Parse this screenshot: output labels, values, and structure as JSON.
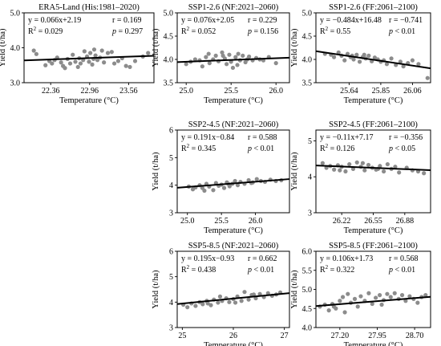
{
  "colors": {
    "points": "#8c8c8c",
    "line": "#000000",
    "frame": "#000000"
  },
  "chart_data": [
    {
      "type": "scatter",
      "title": "ERA5-Land (His:1981–2020)",
      "equation": "y = 0.066x+2.19",
      "r": "r = 0.169",
      "r2": "0.029",
      "p": "= 0.297",
      "xlabel": "Temperature (°C)",
      "ylabel": "Yield (t/ha)",
      "xlim": [
        21.95,
        23.95
      ],
      "ylim": [
        3,
        5
      ],
      "xticks": [
        22.36,
        22.96,
        23.56
      ],
      "yticks": [
        3,
        4,
        5
      ],
      "xtick_labels": [
        "22.36",
        "22.96",
        "23.56"
      ],
      "ytick_labels": [
        "3.0",
        "4.0",
        "5.0"
      ],
      "fit": {
        "slope": 0.066,
        "intercept": 2.19
      },
      "points": [
        [
          22.1,
          3.92
        ],
        [
          22.14,
          3.82
        ],
        [
          22.28,
          3.5
        ],
        [
          22.34,
          3.62
        ],
        [
          22.38,
          3.55
        ],
        [
          22.42,
          3.65
        ],
        [
          22.46,
          3.72
        ],
        [
          22.52,
          3.58
        ],
        [
          22.55,
          3.48
        ],
        [
          22.58,
          3.42
        ],
        [
          22.62,
          3.68
        ],
        [
          22.66,
          3.55
        ],
        [
          22.7,
          3.8
        ],
        [
          22.74,
          3.6
        ],
        [
          22.78,
          3.45
        ],
        [
          22.8,
          3.7
        ],
        [
          22.82,
          3.55
        ],
        [
          22.86,
          3.65
        ],
        [
          22.88,
          3.9
        ],
        [
          22.92,
          3.75
        ],
        [
          22.95,
          3.6
        ],
        [
          22.97,
          3.85
        ],
        [
          23.0,
          3.52
        ],
        [
          23.03,
          3.95
        ],
        [
          23.05,
          3.78
        ],
        [
          23.08,
          3.65
        ],
        [
          23.12,
          3.72
        ],
        [
          23.15,
          3.92
        ],
        [
          23.18,
          3.58
        ],
        [
          23.24,
          3.85
        ],
        [
          23.3,
          3.88
        ],
        [
          23.34,
          3.55
        ],
        [
          23.4,
          3.62
        ],
        [
          23.46,
          3.7
        ],
        [
          23.52,
          3.48
        ],
        [
          23.58,
          3.45
        ],
        [
          23.66,
          3.62
        ],
        [
          23.78,
          3.75
        ],
        [
          23.86,
          3.85
        ],
        [
          23.02,
          3.68
        ]
      ]
    },
    {
      "type": "scatter",
      "title": "SSP1-2.6 (NF:2021–2060)",
      "equation": "y = 0.076x+2.05",
      "r": "r = 0.229",
      "r2": "0.052",
      "p": "= 0.156",
      "xlabel": "Temperature (°C)",
      "ylabel": "Yield (t/ha)",
      "xlim": [
        24.9,
        26.15
      ],
      "ylim": [
        3.5,
        5
      ],
      "xticks": [
        25.0,
        25.5,
        26.0
      ],
      "yticks": [
        3.5,
        4.0,
        4.5,
        5.0
      ],
      "xtick_labels": [
        "25.0",
        "25.5",
        "26.0"
      ],
      "ytick_labels": [
        "3.5",
        "4.0",
        "4.5",
        "5.0"
      ],
      "fit": {
        "slope": 0.076,
        "intercept": 2.05
      },
      "points": [
        [
          25.0,
          3.9
        ],
        [
          25.05,
          3.95
        ],
        [
          25.1,
          4.0
        ],
        [
          25.15,
          3.98
        ],
        [
          25.18,
          3.85
        ],
        [
          25.22,
          4.05
        ],
        [
          25.26,
          3.92
        ],
        [
          25.3,
          4.0
        ],
        [
          25.33,
          4.08
        ],
        [
          25.36,
          3.96
        ],
        [
          25.4,
          4.15
        ],
        [
          25.43,
          4.02
        ],
        [
          25.45,
          3.9
        ],
        [
          25.48,
          4.1
        ],
        [
          25.5,
          3.95
        ],
        [
          25.52,
          3.82
        ],
        [
          25.55,
          4.05
        ],
        [
          25.58,
          4.12
        ],
        [
          25.6,
          3.98
        ],
        [
          25.63,
          4.08
        ],
        [
          25.66,
          3.94
        ],
        [
          25.7,
          4.06
        ],
        [
          25.74,
          3.98
        ],
        [
          25.78,
          4.03
        ],
        [
          25.82,
          4.0
        ],
        [
          25.86,
          3.98
        ],
        [
          25.92,
          4.05
        ],
        [
          26.0,
          3.92
        ],
        [
          25.25,
          4.12
        ],
        [
          25.41,
          4.08
        ],
        [
          25.57,
          3.88
        ],
        [
          25.68,
          4.0
        ]
      ]
    },
    {
      "type": "scatter",
      "title": "SSP1-2.6 (FF:2061–2100)",
      "equation": "y = −0.484x+16.48",
      "r": "r = −0.741",
      "r2": "0.55",
      "p": "< 0.01",
      "xlabel": "Temperature (°C)",
      "ylabel": "Yield (t/ha)",
      "xlim": [
        25.42,
        26.18
      ],
      "ylim": [
        3.5,
        5
      ],
      "xticks": [
        25.64,
        25.85,
        26.06
      ],
      "yticks": [
        3.5,
        4.0,
        4.5,
        5.0
      ],
      "xtick_labels": [
        "25.64",
        "25.85",
        "26.06"
      ],
      "ytick_labels": [
        "3.5",
        "4.0",
        "4.5",
        "5.0"
      ],
      "fit": {
        "slope": -0.484,
        "intercept": 16.48
      },
      "points": [
        [
          25.48,
          4.12
        ],
        [
          25.52,
          4.1
        ],
        [
          25.54,
          4.05
        ],
        [
          25.57,
          4.15
        ],
        [
          25.59,
          4.08
        ],
        [
          25.61,
          3.98
        ],
        [
          25.63,
          4.12
        ],
        [
          25.65,
          4.05
        ],
        [
          25.67,
          4.0
        ],
        [
          25.69,
          4.1
        ],
        [
          25.71,
          3.95
        ],
        [
          25.73,
          4.05
        ],
        [
          25.75,
          4.02
        ],
        [
          25.77,
          4.08
        ],
        [
          25.79,
          3.96
        ],
        [
          25.81,
          4.04
        ],
        [
          25.83,
          4.0
        ],
        [
          25.85,
          3.95
        ],
        [
          25.87,
          3.98
        ],
        [
          25.89,
          3.9
        ],
        [
          25.92,
          4.02
        ],
        [
          25.95,
          3.88
        ],
        [
          25.98,
          3.95
        ],
        [
          26.0,
          3.85
        ],
        [
          26.03,
          3.92
        ],
        [
          26.06,
          3.98
        ],
        [
          26.1,
          3.9
        ],
        [
          26.16,
          3.6
        ],
        [
          25.74,
          4.1
        ],
        [
          25.66,
          4.08
        ]
      ]
    },
    {
      "type": "scatter",
      "title": "SSP2-4.5 (NF:2021–2060)",
      "equation": "y = 0.191x−0.84",
      "r": "r = 0.588",
      "r2": "0.345",
      "p": "< 0.01",
      "xlabel": "Temperature (°C)",
      "ylabel": "Yield (t/ha)",
      "xlim": [
        24.85,
        26.5
      ],
      "ylim": [
        3,
        6
      ],
      "xticks": [
        25.0,
        25.5,
        26.0
      ],
      "yticks": [
        3,
        4,
        5,
        6
      ],
      "xtick_labels": [
        "25.0",
        "25.5",
        "26.0"
      ],
      "ytick_labels": [
        "3",
        "4",
        "5",
        "6"
      ],
      "fit": {
        "slope": 0.191,
        "intercept": -0.84
      },
      "points": [
        [
          25.02,
          3.95
        ],
        [
          25.08,
          3.85
        ],
        [
          25.12,
          3.92
        ],
        [
          25.18,
          4.0
        ],
        [
          25.22,
          3.9
        ],
        [
          25.28,
          4.05
        ],
        [
          25.32,
          3.95
        ],
        [
          25.38,
          3.82
        ],
        [
          25.42,
          4.08
        ],
        [
          25.46,
          3.98
        ],
        [
          25.5,
          4.02
        ],
        [
          25.54,
          3.9
        ],
        [
          25.58,
          4.1
        ],
        [
          25.62,
          3.96
        ],
        [
          25.66,
          4.05
        ],
        [
          25.7,
          4.15
        ],
        [
          25.74,
          4.0
        ],
        [
          25.78,
          4.12
        ],
        [
          25.84,
          4.05
        ],
        [
          25.9,
          4.18
        ],
        [
          25.96,
          4.1
        ],
        [
          26.02,
          4.22
        ],
        [
          26.08,
          4.15
        ],
        [
          26.14,
          4.12
        ],
        [
          26.22,
          4.2
        ],
        [
          26.3,
          4.15
        ],
        [
          26.38,
          4.18
        ],
        [
          25.25,
          3.8
        ],
        [
          25.6,
          4.05
        ],
        [
          25.94,
          4.08
        ]
      ]
    },
    {
      "type": "scatter",
      "title": "SSP2-4.5 (FF:2061–2100)",
      "equation": "y = −0.11x+7.17",
      "r": "r = −0.356",
      "r2": "0.126",
      "p": "< 0.05",
      "xlabel": "Temperature (°C)",
      "ylabel": "Yield (t/ha)",
      "xlim": [
        25.95,
        27.15
      ],
      "ylim": [
        3,
        5.3
      ],
      "xticks": [
        26.22,
        26.55,
        26.88
      ],
      "yticks": [
        3,
        4,
        5
      ],
      "xtick_labels": [
        "26.22",
        "26.55",
        "26.88"
      ],
      "ytick_labels": [
        "3",
        "4",
        "5"
      ],
      "fit": {
        "slope": -0.11,
        "intercept": 7.17
      },
      "points": [
        [
          26.02,
          4.38
        ],
        [
          26.06,
          4.25
        ],
        [
          26.1,
          4.3
        ],
        [
          26.14,
          4.2
        ],
        [
          26.18,
          4.32
        ],
        [
          26.22,
          4.28
        ],
        [
          26.26,
          4.15
        ],
        [
          26.3,
          4.35
        ],
        [
          26.34,
          4.22
        ],
        [
          26.38,
          4.4
        ],
        [
          26.42,
          4.28
        ],
        [
          26.46,
          4.18
        ],
        [
          26.5,
          4.33
        ],
        [
          26.54,
          4.25
        ],
        [
          26.58,
          4.2
        ],
        [
          26.62,
          4.3
        ],
        [
          26.66,
          4.15
        ],
        [
          26.7,
          4.35
        ],
        [
          26.74,
          4.22
        ],
        [
          26.78,
          4.28
        ],
        [
          26.82,
          4.12
        ],
        [
          26.9,
          4.25
        ],
        [
          26.96,
          4.18
        ],
        [
          27.02,
          4.15
        ],
        [
          27.08,
          4.1
        ],
        [
          26.2,
          4.18
        ],
        [
          26.44,
          4.38
        ],
        [
          26.6,
          4.22
        ]
      ]
    },
    {
      "type": "scatter",
      "title": "SSP5-8.5 (NF:2021–2060)",
      "equation": "y = 0.195x−0.93",
      "r": "r = 0.662",
      "r2": "0.438",
      "p": "< 0.01",
      "xlabel": "Temperature (°C)",
      "ylabel": "Yield (t/ha)",
      "xlim": [
        24.9,
        27.1
      ],
      "ylim": [
        3,
        6
      ],
      "xticks": [
        25,
        26,
        27
      ],
      "yticks": [
        3,
        4,
        5,
        6
      ],
      "xtick_labels": [
        "25",
        "26",
        "27"
      ],
      "ytick_labels": [
        "3",
        "4",
        "5",
        "6"
      ],
      "fit": {
        "slope": 0.195,
        "intercept": -0.93
      },
      "points": [
        [
          25.02,
          3.9
        ],
        [
          25.1,
          3.8
        ],
        [
          25.18,
          3.95
        ],
        [
          25.26,
          3.85
        ],
        [
          25.34,
          4.0
        ],
        [
          25.4,
          3.92
        ],
        [
          25.48,
          4.05
        ],
        [
          25.56,
          3.88
        ],
        [
          25.62,
          4.1
        ],
        [
          25.7,
          3.98
        ],
        [
          25.78,
          4.05
        ],
        [
          25.86,
          4.15
        ],
        [
          25.92,
          4.0
        ],
        [
          26.0,
          4.12
        ],
        [
          26.08,
          4.22
        ],
        [
          26.16,
          4.05
        ],
        [
          26.22,
          4.4
        ],
        [
          26.3,
          4.1
        ],
        [
          26.36,
          4.28
        ],
        [
          26.44,
          4.15
        ],
        [
          26.52,
          4.32
        ],
        [
          26.6,
          4.2
        ],
        [
          26.68,
          4.35
        ],
        [
          26.76,
          4.25
        ],
        [
          26.84,
          4.3
        ],
        [
          26.92,
          4.38
        ],
        [
          25.5,
          3.95
        ],
        [
          25.74,
          4.22
        ],
        [
          26.04,
          3.98
        ],
        [
          26.4,
          4.3
        ]
      ]
    },
    {
      "type": "scatter",
      "title": "SSP5-8.5 (FF:2061–2100)",
      "equation": "y = 0.106x+1.73",
      "r": "r = 0.568",
      "r2": "0.322",
      "p": "< 0.01",
      "xlabel": "Temperature (°C)",
      "ylabel": "Yield (t/ha)",
      "xlim": [
        26.72,
        29.02
      ],
      "ylim": [
        4,
        6
      ],
      "xticks": [
        27.2,
        27.95,
        28.7
      ],
      "yticks": [
        4.0,
        4.5,
        5.0,
        5.5,
        6.0
      ],
      "xtick_labels": [
        "27.20",
        "27.95",
        "28.70"
      ],
      "ytick_labels": [
        "4.0",
        "4.5",
        "5.0",
        "5.5",
        "6.0"
      ],
      "fit": {
        "slope": 0.106,
        "intercept": 1.73
      },
      "points": [
        [
          26.8,
          4.55
        ],
        [
          26.9,
          4.6
        ],
        [
          26.98,
          4.45
        ],
        [
          27.05,
          4.62
        ],
        [
          27.12,
          4.5
        ],
        [
          27.2,
          4.7
        ],
        [
          27.26,
          4.8
        ],
        [
          27.3,
          4.4
        ],
        [
          27.36,
          4.88
        ],
        [
          27.42,
          4.65
        ],
        [
          27.5,
          4.75
        ],
        [
          27.56,
          4.55
        ],
        [
          27.62,
          4.82
        ],
        [
          27.7,
          4.7
        ],
        [
          27.78,
          4.9
        ],
        [
          27.85,
          4.62
        ],
        [
          27.92,
          4.78
        ],
        [
          28.0,
          4.85
        ],
        [
          28.08,
          4.72
        ],
        [
          28.15,
          4.88
        ],
        [
          28.22,
          4.8
        ],
        [
          28.3,
          4.9
        ],
        [
          28.38,
          4.75
        ],
        [
          28.45,
          4.85
        ],
        [
          28.52,
          4.7
        ],
        [
          28.6,
          4.82
        ],
        [
          28.68,
          4.75
        ],
        [
          28.76,
          4.65
        ],
        [
          28.84,
          4.8
        ],
        [
          28.92,
          4.85
        ],
        [
          27.08,
          4.55
        ],
        [
          28.04,
          4.6
        ]
      ]
    }
  ]
}
